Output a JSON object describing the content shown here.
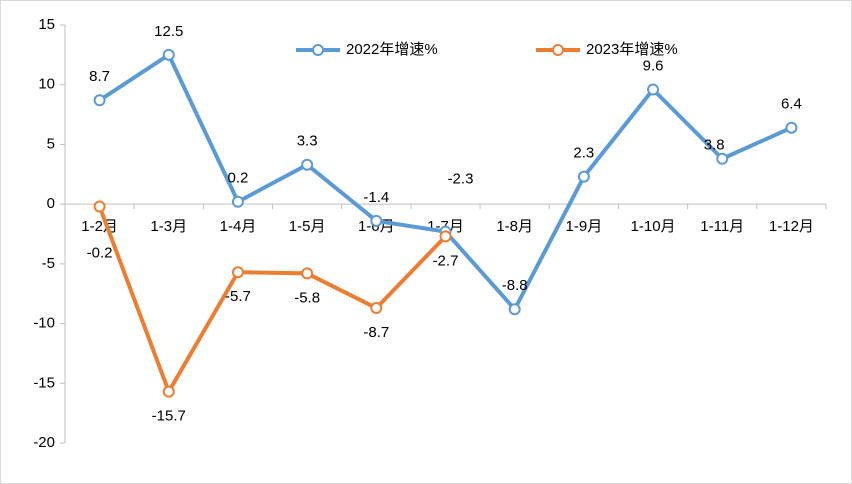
{
  "chart_data": {
    "type": "line",
    "categories": [
      "1-2月",
      "1-3月",
      "1-4月",
      "1-5月",
      "1-6月",
      "1-7月",
      "1-8月",
      "1-9月",
      "1-10月",
      "1-11月",
      "1-12月"
    ],
    "series": [
      {
        "name": "2022年增速%",
        "color": "#5b9bd5",
        "values": [
          8.7,
          12.5,
          0.2,
          3.3,
          -1.4,
          -2.3,
          -8.8,
          2.3,
          9.6,
          3.8,
          6.4
        ]
      },
      {
        "name": "2023年增速%",
        "color": "#ed7d31",
        "values": [
          -0.2,
          -15.7,
          -5.7,
          -5.8,
          -8.7,
          -2.7,
          null,
          null,
          null,
          null,
          null
        ]
      }
    ],
    "ylim": [
      -20,
      15
    ],
    "yticks": [
      -20,
      -15,
      -10,
      -5,
      0,
      5,
      10,
      15
    ],
    "legend": "top"
  }
}
